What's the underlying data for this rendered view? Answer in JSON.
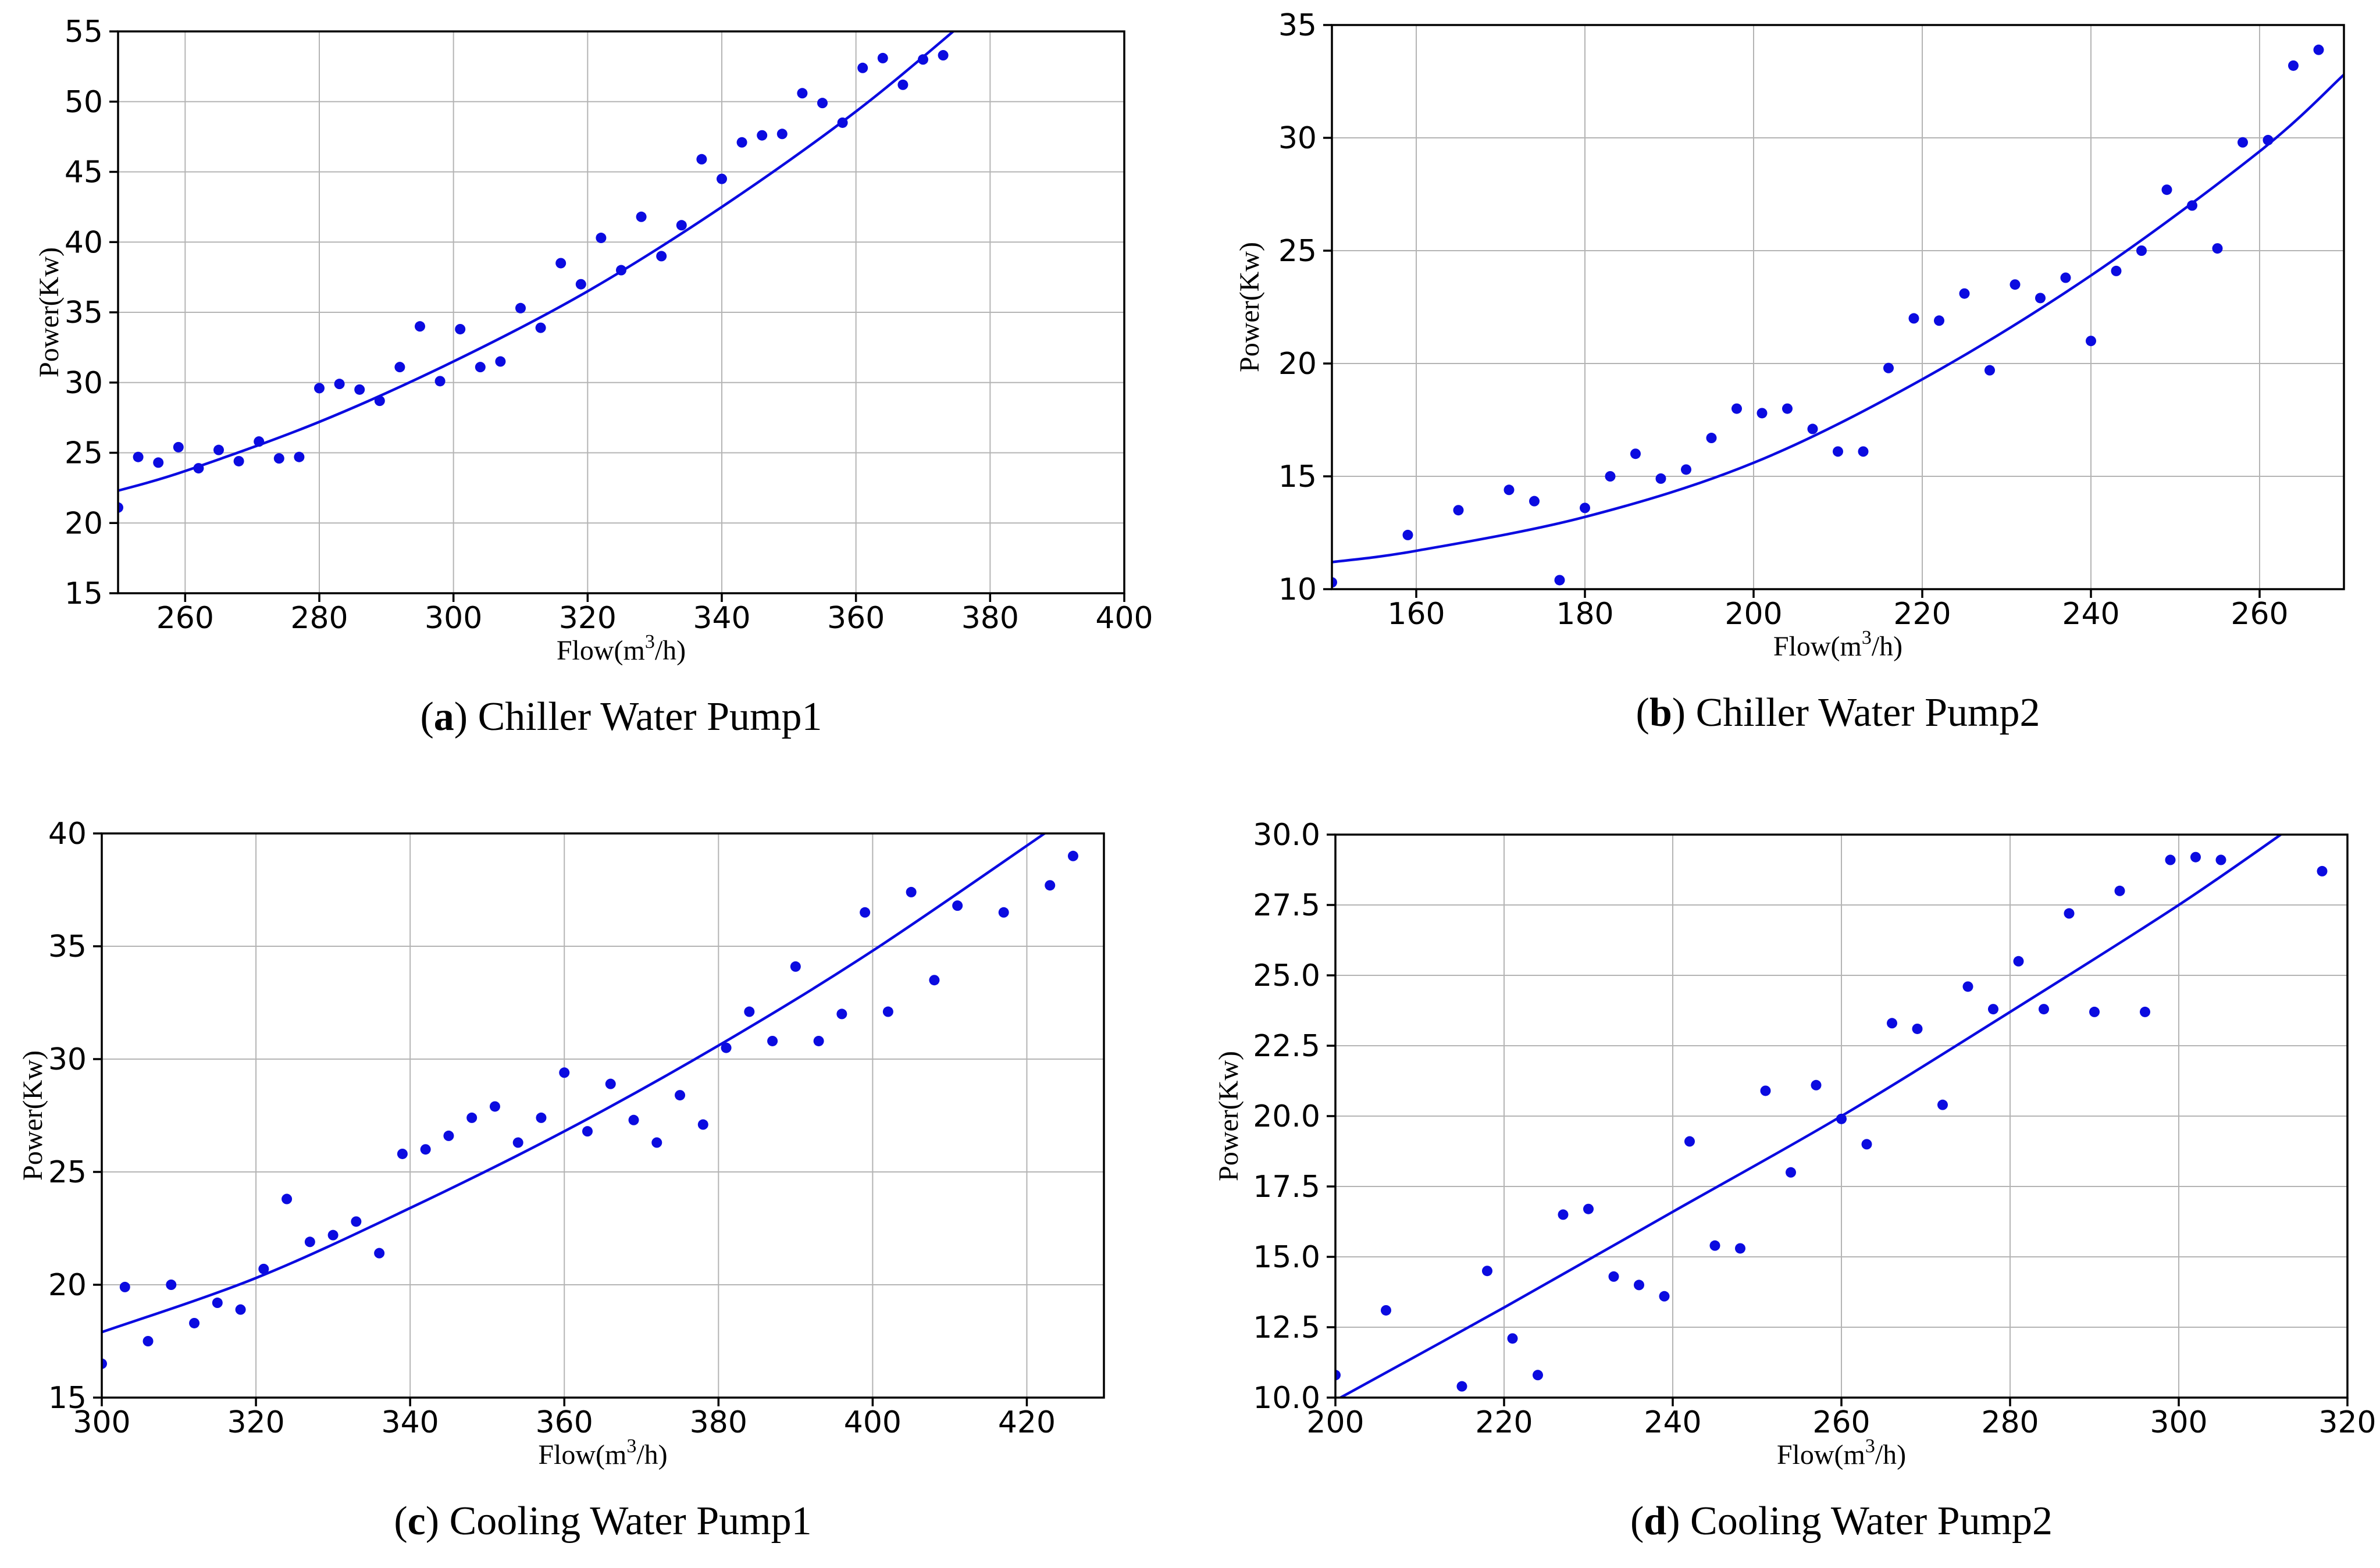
{
  "figure": {
    "xlabel": {
      "pre": "Flow(m",
      "sup": "3",
      "post": "/h)"
    },
    "ylabel": "Power(Kw)",
    "colors": {
      "accent": "#0b0be0",
      "grid": "#b4b4b4",
      "axis": "#000000",
      "background": "#ffffff"
    }
  },
  "chart_data": [
    {
      "id": "a",
      "type": "scatter",
      "caption": {
        "open": "(",
        "letter": "a",
        "close": ") ",
        "title": "Chiller Water Pump1"
      },
      "xlabel": "Flow(m3/h)",
      "ylabel": "Power(Kw)",
      "xlim": [
        250,
        400
      ],
      "ylim": [
        15,
        55
      ],
      "xticks": [
        260,
        280,
        300,
        320,
        340,
        360,
        380,
        400
      ],
      "yticks": [
        15,
        20,
        25,
        30,
        35,
        40,
        45,
        50,
        55
      ],
      "ytick_decimals": 0,
      "grid": true,
      "points": [
        [
          250,
          21.1
        ],
        [
          253,
          24.7
        ],
        [
          256,
          24.3
        ],
        [
          259,
          25.4
        ],
        [
          262,
          23.9
        ],
        [
          265,
          25.2
        ],
        [
          268,
          24.4
        ],
        [
          271,
          25.8
        ],
        [
          274,
          24.6
        ],
        [
          277,
          24.7
        ],
        [
          280,
          29.6
        ],
        [
          283,
          29.9
        ],
        [
          286,
          29.5
        ],
        [
          289,
          28.7
        ],
        [
          292,
          31.1
        ],
        [
          295,
          34.0
        ],
        [
          298,
          30.1
        ],
        [
          301,
          33.8
        ],
        [
          304,
          31.1
        ],
        [
          307,
          31.5
        ],
        [
          310,
          35.3
        ],
        [
          313,
          33.9
        ],
        [
          316,
          38.5
        ],
        [
          319,
          37.0
        ],
        [
          322,
          40.3
        ],
        [
          325,
          38.0
        ],
        [
          328,
          41.8
        ],
        [
          331,
          39.0
        ],
        [
          334,
          41.2
        ],
        [
          337,
          45.9
        ],
        [
          340,
          44.5
        ],
        [
          343,
          47.1
        ],
        [
          346,
          47.6
        ],
        [
          349,
          47.7
        ],
        [
          352,
          50.6
        ],
        [
          355,
          49.9
        ],
        [
          358,
          48.5
        ],
        [
          361,
          52.4
        ],
        [
          364,
          53.1
        ],
        [
          367,
          51.2
        ],
        [
          370,
          53.0
        ],
        [
          373,
          53.3
        ]
      ],
      "fit_curve": [
        [
          250,
          22.3
        ],
        [
          260,
          23.7
        ],
        [
          280,
          27.2
        ],
        [
          300,
          31.5
        ],
        [
          320,
          36.5
        ],
        [
          340,
          42.5
        ],
        [
          360,
          49.3
        ],
        [
          376,
          55.6
        ]
      ]
    },
    {
      "id": "b",
      "type": "scatter",
      "caption": {
        "open": "(",
        "letter": "b",
        "close": ") ",
        "title": "Chiller Water Pump2"
      },
      "xlabel": "Flow(m3/h)",
      "ylabel": "Power(Kw)",
      "xlim": [
        150,
        270
      ],
      "ylim": [
        10,
        35
      ],
      "xticks": [
        160,
        180,
        200,
        220,
        240,
        260
      ],
      "yticks": [
        10,
        15,
        20,
        25,
        30,
        35
      ],
      "ytick_decimals": 0,
      "grid": true,
      "points": [
        [
          150,
          10.3
        ],
        [
          159,
          12.4
        ],
        [
          165,
          13.5
        ],
        [
          171,
          14.4
        ],
        [
          174,
          13.9
        ],
        [
          177,
          10.4
        ],
        [
          180,
          13.6
        ],
        [
          183,
          15.0
        ],
        [
          186,
          16.0
        ],
        [
          189,
          14.9
        ],
        [
          192,
          15.3
        ],
        [
          195,
          16.7
        ],
        [
          198,
          18.0
        ],
        [
          201,
          17.8
        ],
        [
          204,
          18.0
        ],
        [
          207,
          17.1
        ],
        [
          210,
          16.1
        ],
        [
          213,
          16.1
        ],
        [
          216,
          19.8
        ],
        [
          219,
          22.0
        ],
        [
          222,
          21.9
        ],
        [
          225,
          23.1
        ],
        [
          228,
          19.7
        ],
        [
          231,
          23.5
        ],
        [
          234,
          22.9
        ],
        [
          237,
          23.8
        ],
        [
          240,
          21.0
        ],
        [
          243,
          24.1
        ],
        [
          246,
          25.0
        ],
        [
          249,
          27.7
        ],
        [
          252,
          27.0
        ],
        [
          255,
          25.1
        ],
        [
          258,
          29.8
        ],
        [
          261,
          29.9
        ],
        [
          264,
          33.2
        ],
        [
          267,
          33.9
        ]
      ],
      "fit_curve": [
        [
          150,
          11.2
        ],
        [
          160,
          11.7
        ],
        [
          180,
          13.2
        ],
        [
          200,
          15.6
        ],
        [
          220,
          19.3
        ],
        [
          240,
          23.9
        ],
        [
          260,
          29.4
        ],
        [
          270,
          32.8
        ]
      ]
    },
    {
      "id": "c",
      "type": "scatter",
      "caption": {
        "open": "(",
        "letter": "c",
        "close": ") ",
        "title": "Cooling Water Pump1"
      },
      "xlabel": "Flow(m3/h)",
      "ylabel": "Power(Kw)",
      "xlim": [
        300,
        430
      ],
      "ylim": [
        15,
        40
      ],
      "xticks": [
        300,
        320,
        340,
        360,
        380,
        400,
        420
      ],
      "yticks": [
        15,
        20,
        25,
        30,
        35,
        40
      ],
      "ytick_decimals": 0,
      "grid": true,
      "points": [
        [
          300,
          16.5
        ],
        [
          303,
          19.9
        ],
        [
          306,
          17.5
        ],
        [
          309,
          20.0
        ],
        [
          312,
          18.3
        ],
        [
          315,
          19.2
        ],
        [
          318,
          18.9
        ],
        [
          321,
          20.7
        ],
        [
          324,
          23.8
        ],
        [
          327,
          21.9
        ],
        [
          330,
          22.2
        ],
        [
          333,
          22.8
        ],
        [
          336,
          21.4
        ],
        [
          339,
          25.8
        ],
        [
          342,
          26.0
        ],
        [
          345,
          26.6
        ],
        [
          348,
          27.4
        ],
        [
          351,
          27.9
        ],
        [
          354,
          26.3
        ],
        [
          357,
          27.4
        ],
        [
          360,
          29.4
        ],
        [
          363,
          26.8
        ],
        [
          366,
          28.9
        ],
        [
          369,
          27.3
        ],
        [
          372,
          26.3
        ],
        [
          375,
          28.4
        ],
        [
          378,
          27.1
        ],
        [
          381,
          30.5
        ],
        [
          384,
          32.1
        ],
        [
          387,
          30.8
        ],
        [
          390,
          34.1
        ],
        [
          393,
          30.8
        ],
        [
          396,
          32.0
        ],
        [
          399,
          36.5
        ],
        [
          402,
          32.1
        ],
        [
          405,
          37.4
        ],
        [
          408,
          33.5
        ],
        [
          411,
          36.8
        ],
        [
          417,
          36.5
        ],
        [
          423,
          37.7
        ],
        [
          426,
          39.0
        ]
      ],
      "fit_curve": [
        [
          300,
          17.9
        ],
        [
          320,
          20.3
        ],
        [
          340,
          23.4
        ],
        [
          360,
          26.8
        ],
        [
          380,
          30.6
        ],
        [
          400,
          34.8
        ],
        [
          424,
          40.4
        ]
      ]
    },
    {
      "id": "d",
      "type": "scatter",
      "caption": {
        "open": "(",
        "letter": "d",
        "close": ") ",
        "title": "Cooling Water Pump2"
      },
      "xlabel": "Flow(m3/h)",
      "ylabel": "Power(Kw)",
      "xlim": [
        200,
        320
      ],
      "ylim": [
        10,
        30
      ],
      "xticks": [
        200,
        220,
        240,
        260,
        280,
        300,
        320
      ],
      "yticks": [
        10.0,
        12.5,
        15.0,
        17.5,
        20.0,
        22.5,
        25.0,
        27.5,
        30.0
      ],
      "ytick_decimals": 1,
      "grid": true,
      "points": [
        [
          200,
          10.8
        ],
        [
          206,
          13.1
        ],
        [
          215,
          10.4
        ],
        [
          218,
          14.5
        ],
        [
          221,
          12.1
        ],
        [
          224,
          10.8
        ],
        [
          227,
          16.5
        ],
        [
          230,
          16.7
        ],
        [
          233,
          14.3
        ],
        [
          236,
          14.0
        ],
        [
          239,
          13.6
        ],
        [
          242,
          19.1
        ],
        [
          245,
          15.4
        ],
        [
          248,
          15.3
        ],
        [
          251,
          20.9
        ],
        [
          254,
          18.0
        ],
        [
          257,
          21.1
        ],
        [
          260,
          19.9
        ],
        [
          263,
          19.0
        ],
        [
          266,
          23.3
        ],
        [
          269,
          23.1
        ],
        [
          272,
          20.4
        ],
        [
          275,
          24.6
        ],
        [
          278,
          23.8
        ],
        [
          281,
          25.5
        ],
        [
          284,
          23.8
        ],
        [
          287,
          27.2
        ],
        [
          290,
          23.7
        ],
        [
          293,
          28.0
        ],
        [
          296,
          23.7
        ],
        [
          299,
          29.1
        ],
        [
          302,
          29.2
        ],
        [
          305,
          29.1
        ],
        [
          317,
          28.7
        ]
      ],
      "fit_curve": [
        [
          200,
          9.9
        ],
        [
          220,
          13.2
        ],
        [
          240,
          16.6
        ],
        [
          260,
          20.0
        ],
        [
          280,
          23.7
        ],
        [
          300,
          27.5
        ],
        [
          314,
          30.4
        ]
      ]
    }
  ]
}
